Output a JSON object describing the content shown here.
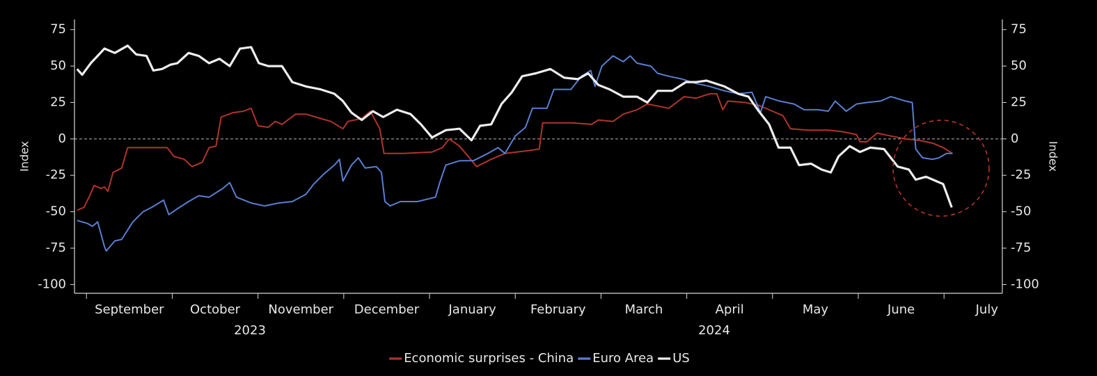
{
  "chart_data": {
    "type": "line",
    "ylabel": "Index",
    "y2label": "Index",
    "ylim": [
      -106,
      82
    ],
    "yticks": [
      -100,
      -75,
      -50,
      -25,
      0,
      25,
      50,
      75
    ],
    "y2lim": [
      -106,
      82
    ],
    "y2ticks": [
      -100,
      -75,
      -50,
      -25,
      0,
      25,
      50,
      75
    ],
    "xlim": [
      -0.14,
      10.68
    ],
    "xticks": [
      {
        "value": 0,
        "label": "September"
      },
      {
        "value": 1,
        "label": "October"
      },
      {
        "value": 2,
        "label": "November"
      },
      {
        "value": 3,
        "label": "December"
      },
      {
        "value": 4,
        "label": "January"
      },
      {
        "value": 5,
        "label": "February"
      },
      {
        "value": 6,
        "label": "March"
      },
      {
        "value": 7,
        "label": "April"
      },
      {
        "value": 8,
        "label": "May"
      },
      {
        "value": 9,
        "label": "June"
      },
      {
        "value": 10,
        "label": "July"
      }
    ],
    "years": [
      "2023",
      "2024"
    ],
    "legend": "bottom",
    "series": [
      {
        "name": "Economic surprises - China",
        "color": "#b0342c",
        "width": 2,
        "x": [
          -0.11,
          -0.03,
          0.03,
          0.09,
          0.17,
          0.21,
          0.25,
          0.31,
          0.41,
          0.48,
          0.62,
          0.94,
          1.02,
          1.14,
          1.23,
          1.35,
          1.43,
          1.51,
          1.57,
          1.71,
          1.83,
          1.92,
          2.0,
          2.12,
          2.2,
          2.28,
          2.44,
          2.56,
          2.73,
          2.85,
          2.99,
          3.05,
          3.21,
          3.31,
          3.42,
          3.47,
          3.7,
          4.03,
          4.15,
          4.23,
          4.35,
          4.55,
          4.72,
          4.88,
          5.16,
          5.28,
          5.32,
          5.65,
          5.89,
          5.97,
          6.14,
          6.26,
          6.42,
          6.54,
          6.79,
          6.97,
          7.11,
          7.27,
          7.35,
          7.42,
          7.48,
          7.68,
          7.84,
          8.0,
          8.12,
          8.21,
          8.41,
          8.65,
          8.81,
          8.98,
          9.02,
          9.1,
          9.22,
          9.38,
          9.55,
          9.71,
          9.87,
          9.99,
          10.1
        ],
        "values": [
          -49,
          -47,
          -40,
          -32,
          -34,
          -33,
          -36,
          -23,
          -20,
          -6,
          -6,
          -6,
          -12,
          -14,
          -19,
          -16,
          -6,
          -5,
          15,
          18,
          19,
          21,
          9,
          8,
          12,
          10,
          17,
          17,
          14,
          12,
          7,
          12,
          14,
          19,
          7,
          -10,
          -10,
          -9,
          -6,
          0,
          -5,
          -19,
          -14,
          -10,
          -8,
          -7,
          11,
          11,
          10,
          13,
          12,
          17,
          20,
          24,
          21,
          29,
          28,
          31,
          31,
          20,
          26,
          25,
          23,
          19,
          16,
          7,
          6,
          6,
          5,
          3,
          -2,
          -2,
          4,
          2,
          0,
          -1,
          -3,
          -6,
          -10
        ]
      },
      {
        "name": "Euro Area",
        "color": "#5a7ed0",
        "width": 2,
        "x": [
          -0.11,
          0.01,
          0.07,
          0.13,
          0.21,
          0.23,
          0.33,
          0.41,
          0.54,
          0.66,
          0.76,
          0.9,
          0.96,
          1.06,
          1.19,
          1.31,
          1.43,
          1.59,
          1.67,
          1.75,
          1.92,
          2.08,
          2.24,
          2.4,
          2.56,
          2.65,
          2.77,
          2.89,
          2.95,
          2.99,
          3.09,
          3.17,
          3.25,
          3.38,
          3.44,
          3.48,
          3.54,
          3.66,
          3.86,
          4.07,
          4.12,
          4.19,
          4.35,
          4.51,
          4.68,
          4.8,
          4.88,
          5.0,
          5.12,
          5.2,
          5.37,
          5.45,
          5.65,
          5.77,
          5.88,
          5.93,
          6.01,
          6.14,
          6.26,
          6.34,
          6.42,
          6.58,
          6.66,
          6.79,
          6.95,
          7.11,
          7.27,
          7.44,
          7.6,
          7.76,
          7.86,
          7.92,
          8.08,
          8.25,
          8.37,
          8.53,
          8.65,
          8.73,
          8.86,
          8.98,
          9.1,
          9.26,
          9.38,
          9.55,
          9.63,
          9.67,
          9.75,
          9.87,
          9.94,
          10.03,
          10.1
        ],
        "values": [
          -56,
          -58,
          -60,
          -57,
          -74,
          -77,
          -70,
          -69,
          -57,
          -50,
          -47,
          -42,
          -52,
          -48,
          -43,
          -39,
          -40,
          -34,
          -30,
          -40,
          -44,
          -46,
          -44,
          -43,
          -38,
          -31,
          -24,
          -18,
          -14,
          -29,
          -18,
          -13,
          -20,
          -19,
          -23,
          -43,
          -46,
          -43,
          -43,
          -40,
          -30,
          -18,
          -15,
          -15,
          -10,
          -6,
          -10,
          2,
          8,
          21,
          21,
          34,
          34,
          43,
          47,
          36,
          50,
          57,
          53,
          57,
          52,
          50,
          45,
          43,
          41,
          38,
          36,
          33,
          31,
          32,
          18,
          29,
          26,
          24,
          20,
          20,
          19,
          26,
          19,
          24,
          25,
          26,
          29,
          26,
          25,
          -7,
          -13,
          -14,
          -13,
          -10,
          -10
        ]
      },
      {
        "name": "US",
        "color": "#eeeeee",
        "width": 3.2,
        "x": [
          -0.11,
          -0.05,
          0.05,
          0.13,
          0.21,
          0.33,
          0.48,
          0.58,
          0.7,
          0.78,
          0.88,
          0.98,
          1.06,
          1.19,
          1.31,
          1.43,
          1.55,
          1.67,
          1.79,
          1.92,
          2.01,
          2.12,
          2.28,
          2.4,
          2.56,
          2.73,
          2.89,
          2.99,
          3.09,
          3.21,
          3.34,
          3.46,
          3.62,
          3.78,
          3.9,
          4.03,
          4.19,
          4.35,
          4.49,
          4.59,
          4.72,
          4.84,
          4.96,
          5.08,
          5.24,
          5.41,
          5.57,
          5.73,
          5.85,
          5.97,
          6.1,
          6.26,
          6.42,
          6.54,
          6.66,
          6.83,
          6.99,
          7.11,
          7.23,
          7.44,
          7.6,
          7.72,
          7.84,
          7.96,
          8.07,
          8.21,
          8.31,
          8.45,
          8.57,
          8.68,
          8.77,
          8.9,
          9.02,
          9.14,
          9.3,
          9.46,
          9.59,
          9.67,
          9.79,
          9.91,
          9.99,
          10.09
        ],
        "values": [
          48,
          44,
          52,
          57,
          62,
          59,
          64,
          58,
          57,
          47,
          48,
          51,
          52,
          59,
          57,
          52,
          55,
          50,
          62,
          63,
          52,
          50,
          50,
          39,
          36,
          34,
          31,
          26,
          18,
          13,
          19,
          15,
          20,
          17,
          10,
          1,
          6,
          7,
          -1,
          9,
          10,
          24,
          32,
          43,
          45,
          48,
          42,
          41,
          45,
          37,
          34,
          29,
          29,
          25,
          33,
          33,
          39,
          39,
          40,
          36,
          31,
          29,
          19,
          10,
          -6,
          -6,
          -18,
          -17,
          -21,
          -23,
          -12,
          -5,
          -9,
          -6,
          -7,
          -19,
          -21,
          -28,
          -26,
          -29,
          -31,
          -47
        ]
      }
    ]
  }
}
